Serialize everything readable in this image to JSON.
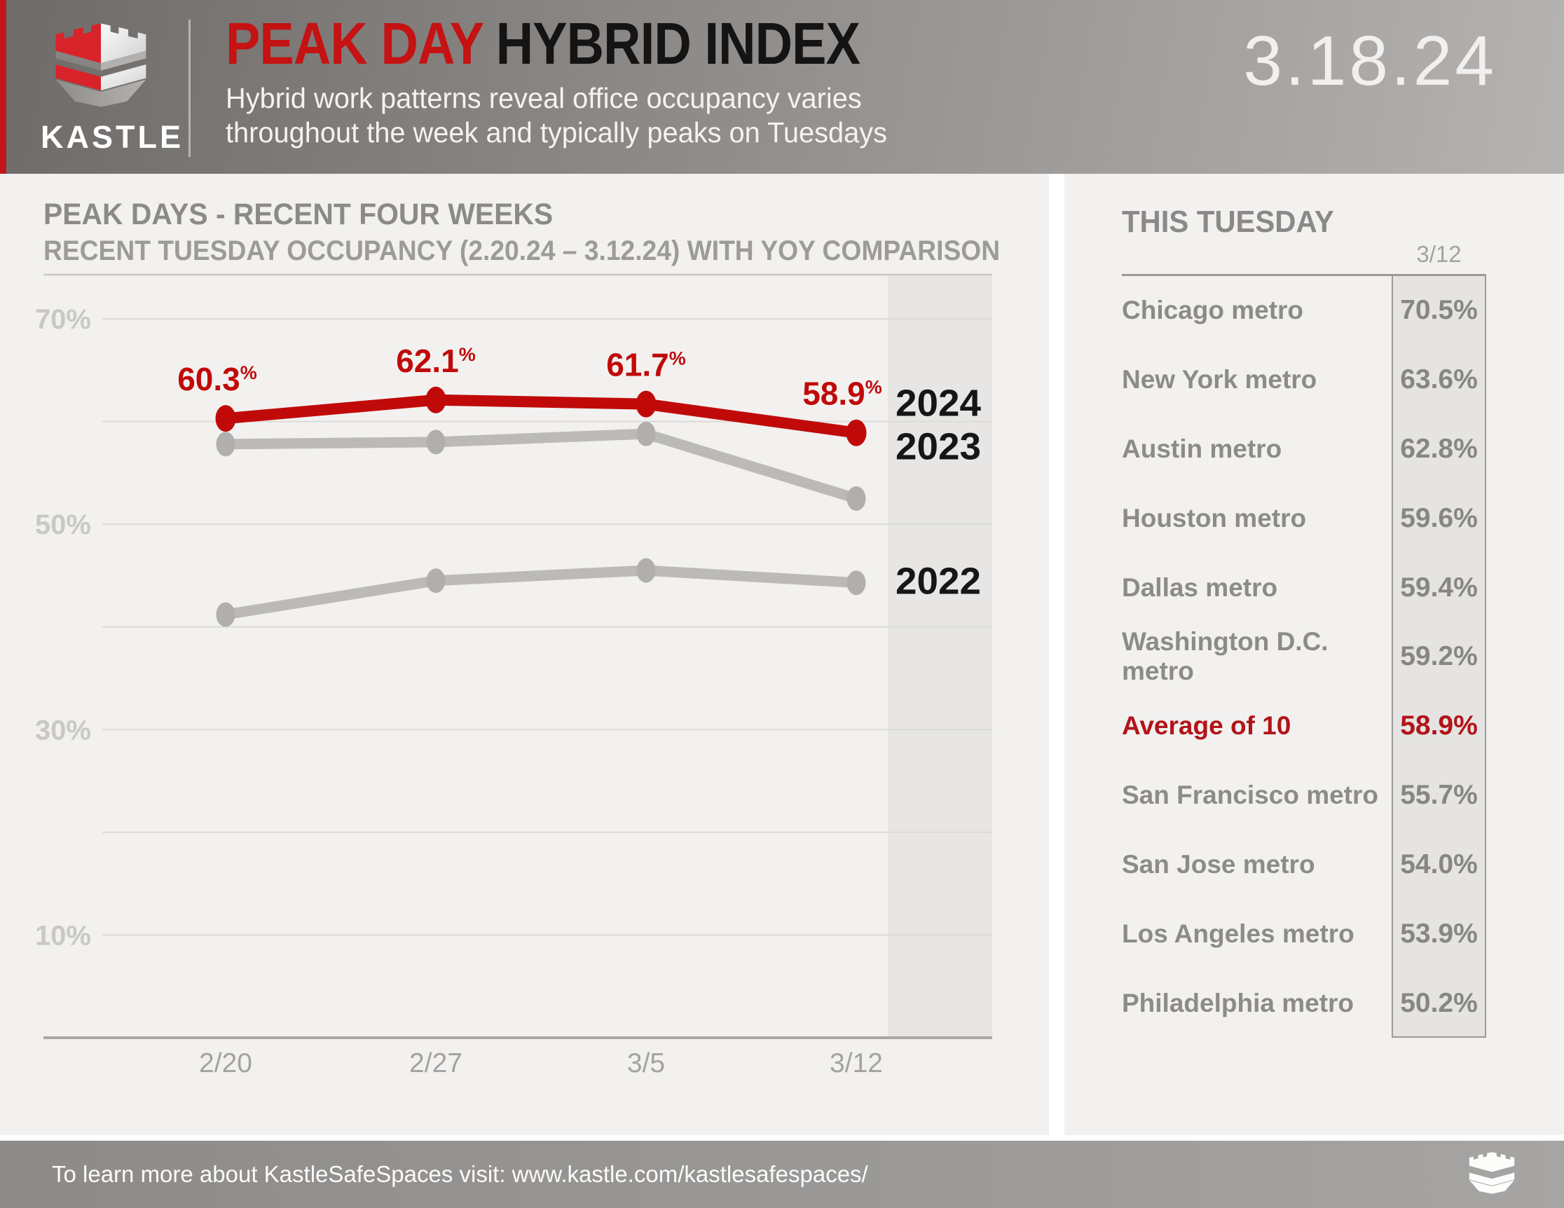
{
  "header": {
    "brand": "KASTLE",
    "title_red": "PEAK DAY",
    "title_black": "HYBRID INDEX",
    "subtitle_line1": "Hybrid work patterns reveal office occupancy varies",
    "subtitle_line2": "throughout the week and typically peaks on Tuesdays",
    "date": "3.18.24"
  },
  "chart": {
    "title": "PEAK DAYS - RECENT FOUR WEEKS",
    "subtitle": "RECENT TUESDAY OCCUPANCY (2.20.24 – 3.12.24) WITH YOY COMPARISON"
  },
  "chart_data": {
    "type": "line",
    "title": "PEAK DAYS - RECENT FOUR WEEKS",
    "subtitle": "RECENT TUESDAY OCCUPANCY (2.20.24 – 3.12.24) WITH YOY COMPARISON",
    "x": [
      "2/20",
      "2/27",
      "3/5",
      "3/12"
    ],
    "series": [
      {
        "name": "2024",
        "values": [
          60.3,
          62.1,
          61.7,
          58.9
        ],
        "point_labels": [
          "60.3",
          "62.1",
          "61.7",
          "58.9"
        ],
        "color": "#c00a0a",
        "marker": "#c00a0a"
      },
      {
        "name": "2023",
        "values": [
          57.8,
          58.0,
          58.8,
          52.5
        ],
        "color": "#bcbab8",
        "marker": "#b1afad"
      },
      {
        "name": "2022",
        "values": [
          41.2,
          44.5,
          45.5,
          44.3
        ],
        "color": "#bcbab8",
        "marker": "#b1afad"
      }
    ],
    "ylim": [
      0,
      74.4
    ],
    "ytick_labels": [
      {
        "value": 70,
        "label": "70%"
      },
      {
        "value": 50,
        "label": "50%"
      },
      {
        "value": 30,
        "label": "30%"
      },
      {
        "value": 10,
        "label": "10%"
      }
    ],
    "gridlines": [
      70,
      60,
      50,
      40,
      30,
      20,
      10
    ],
    "grid": true,
    "legend_position": "right-inline-year-labels",
    "highlight_last_column": true,
    "year_label_levels": {
      "2024": 61.9,
      "2023": 57.7,
      "2022": 44.6
    }
  },
  "table": {
    "title": "THIS TUESDAY",
    "column_header": "3/12",
    "rows": [
      {
        "label": "Chicago metro",
        "value": "70.5%",
        "highlight": false
      },
      {
        "label": "New York metro",
        "value": "63.6%",
        "highlight": false
      },
      {
        "label": "Austin metro",
        "value": "62.8%",
        "highlight": false
      },
      {
        "label": "Houston metro",
        "value": "59.6%",
        "highlight": false
      },
      {
        "label": "Dallas metro",
        "value": "59.4%",
        "highlight": false
      },
      {
        "label": "Washington D.C. metro",
        "value": "59.2%",
        "highlight": false
      },
      {
        "label": "Average of 10",
        "value": "58.9%",
        "highlight": true
      },
      {
        "label": "San Francisco metro",
        "value": "55.7%",
        "highlight": false
      },
      {
        "label": "San Jose metro",
        "value": "54.0%",
        "highlight": false
      },
      {
        "label": "Los Angeles metro",
        "value": "53.9%",
        "highlight": false
      },
      {
        "label": "Philadelphia metro",
        "value": "50.2%",
        "highlight": false
      }
    ]
  },
  "footer": {
    "text": "To learn more about KastleSafeSpaces visit: www.kastle.com/kastlesafespaces/"
  },
  "colors": {
    "accent_red": "#c00a0a",
    "title_red": "#c51212",
    "table_red": "#b11419",
    "line_gray": "#bcbab8",
    "band_gray": "#e7e6e4",
    "panel_gray": "#f2f1ef"
  }
}
